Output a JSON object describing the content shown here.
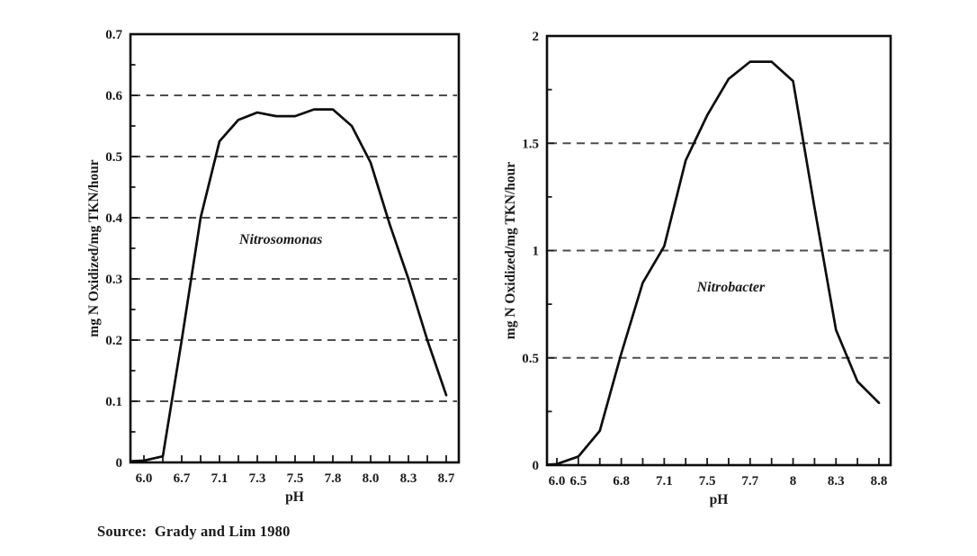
{
  "source_note": "Source:  Grady and Lim 1980",
  "colors": {
    "ink": "#1a1a1a",
    "curve": "#0d0d0d",
    "grid": "#4d4d4d",
    "background": "#ffffff"
  },
  "chart_data": [
    {
      "type": "line",
      "species_label": "Nitrosomonas",
      "xlabel": "pH",
      "ylabel": "mg N Oxidized/mg TKN/hour",
      "ylim": [
        0,
        0.7
      ],
      "y_ticks": [
        0,
        0.1,
        0.2,
        0.3,
        0.4,
        0.5,
        0.6,
        0.7
      ],
      "y_tick_labels": [
        "0",
        "0.1",
        "0.2",
        "0.3",
        "0.4",
        "0.5",
        "0.6",
        "0.7"
      ],
      "y_minor_step": 0.05,
      "grid_y": [
        0.1,
        0.2,
        0.3,
        0.4,
        0.5,
        0.6
      ],
      "grid_style": "dashed",
      "legend": "none",
      "x_tick_labels": [
        "6.0",
        "",
        "6.7",
        "",
        "7.1",
        "",
        "7.3",
        "",
        "7.5",
        "",
        "7.8",
        "",
        "8.0",
        "",
        "8.3",
        "",
        "8.7"
      ],
      "values": [
        0.003,
        0.01,
        0.2,
        0.4,
        0.525,
        0.56,
        0.572,
        0.566,
        0.566,
        0.577,
        0.577,
        0.55,
        0.49,
        0.39,
        0.3,
        0.2,
        0.11
      ]
    },
    {
      "type": "line",
      "species_label": "Nitrobacter",
      "xlabel": "pH",
      "ylabel": "mg N Oxidized/mg TKN/hour",
      "ylim": [
        0,
        2
      ],
      "y_ticks": [
        0,
        0.5,
        1,
        1.5,
        2
      ],
      "y_tick_labels": [
        "0",
        "0.5",
        "1",
        "1.5",
        "2"
      ],
      "y_minor_step": 0.25,
      "grid_y": [
        0.5,
        1,
        1.5
      ],
      "grid_style": "dashed",
      "legend": "none",
      "x_tick_labels": [
        "6.0",
        "6.5",
        "",
        "6.8",
        "",
        "7.1",
        "",
        "7.5",
        "",
        "7.7",
        "",
        "8",
        "",
        "8.3",
        "",
        "8.8"
      ],
      "values": [
        0.005,
        0.04,
        0.16,
        0.52,
        0.85,
        1.02,
        1.42,
        1.63,
        1.8,
        1.88,
        1.88,
        1.79,
        1.2,
        0.63,
        0.39,
        0.29
      ]
    }
  ]
}
